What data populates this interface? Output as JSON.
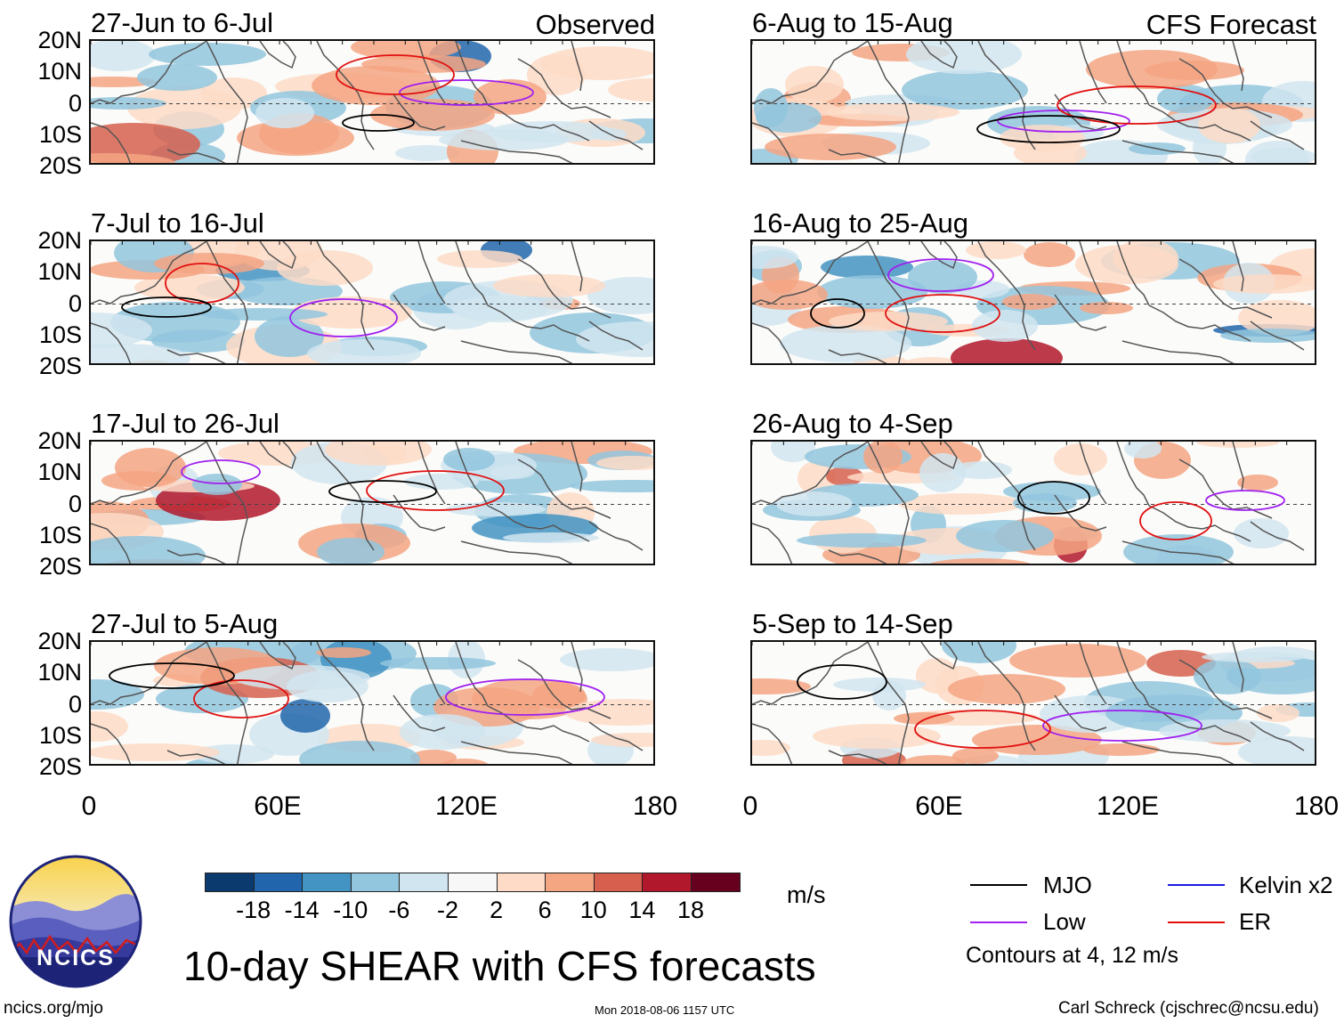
{
  "panels_left": [
    {
      "title": "27-Jun to 6-Jul",
      "label": "Observed"
    },
    {
      "title": "7-Jul to 16-Jul",
      "label": ""
    },
    {
      "title": "17-Jul to 26-Jul",
      "label": ""
    },
    {
      "title": "27-Jul to 5-Aug",
      "label": ""
    }
  ],
  "panels_right": [
    {
      "title": "6-Aug to 15-Aug",
      "label": "CFS Forecast"
    },
    {
      "title": "16-Aug to 25-Aug",
      "label": ""
    },
    {
      "title": "26-Aug to 4-Sep",
      "label": ""
    },
    {
      "title": "5-Sep to 14-Sep",
      "label": ""
    }
  ],
  "latitude_labels": [
    "20N",
    "10N",
    "0",
    "10S",
    "20S"
  ],
  "longitude_labels": [
    "0",
    "60E",
    "120E",
    "180"
  ],
  "colorbar": {
    "unit": "m/s",
    "labels": [
      "-18",
      "-14",
      "-10",
      "-6",
      "-2",
      "2",
      "6",
      "10",
      "14",
      "18"
    ],
    "colors": [
      "#0b3a6e",
      "#2166ac",
      "#4393c3",
      "#92c5de",
      "#d1e5f0",
      "#f7f7f7",
      "#fddbc7",
      "#f4a582",
      "#d6604d",
      "#b2182b",
      "#67001f"
    ]
  },
  "legend": {
    "items": [
      {
        "name": "MJO",
        "color": "#000000"
      },
      {
        "name": "Kelvin x2",
        "color": "#1a1adf"
      },
      {
        "name": "Low",
        "color": "#a020f0"
      },
      {
        "name": "ER",
        "color": "#e01010"
      }
    ],
    "contours_note": "Contours at 4, 12 m/s"
  },
  "main_title": "10-day SHEAR with CFS forecasts",
  "logo_text": "NCICS",
  "footer": {
    "url": "ncics.org/mjo",
    "timestamp": "Mon 2018-08-06 1157 UTC",
    "credit": "Carl Schreck (cjschrec@ncsu.edu)"
  }
}
